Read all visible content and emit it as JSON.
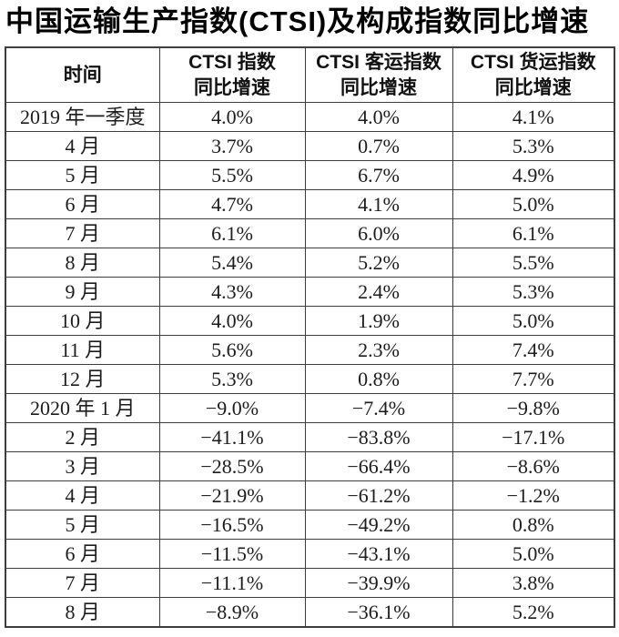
{
  "title": "中国运输生产指数(CTSI)及构成指数同比增速",
  "colors": {
    "background": "#ffffff",
    "text": "#1c1c1c",
    "border": "#3d3d3d"
  },
  "table": {
    "columns": [
      {
        "line1": "时间",
        "line2": ""
      },
      {
        "line1": "CTSI 指数",
        "line2": "同比增速"
      },
      {
        "line1": "CTSI 客运指数",
        "line2": "同比增速"
      },
      {
        "line1": "CTSI 货运指数",
        "line2": "同比增速"
      }
    ],
    "rows": [
      {
        "time": "2019 年一季度",
        "ctsi": "4.0%",
        "passenger": "4.0%",
        "freight": "4.1%"
      },
      {
        "time": "4 月",
        "ctsi": "3.7%",
        "passenger": "0.7%",
        "freight": "5.3%"
      },
      {
        "time": "5 月",
        "ctsi": "5.5%",
        "passenger": "6.7%",
        "freight": "4.9%"
      },
      {
        "time": "6 月",
        "ctsi": "4.7%",
        "passenger": "4.1%",
        "freight": "5.0%"
      },
      {
        "time": "7 月",
        "ctsi": "6.1%",
        "passenger": "6.0%",
        "freight": "6.1%"
      },
      {
        "time": "8 月",
        "ctsi": "5.4%",
        "passenger": "5.2%",
        "freight": "5.5%"
      },
      {
        "time": "9 月",
        "ctsi": "4.3%",
        "passenger": "2.4%",
        "freight": "5.3%"
      },
      {
        "time": "10 月",
        "ctsi": "4.0%",
        "passenger": "1.9%",
        "freight": "5.0%"
      },
      {
        "time": "11 月",
        "ctsi": "5.6%",
        "passenger": "2.3%",
        "freight": "7.4%"
      },
      {
        "time": "12 月",
        "ctsi": "5.3%",
        "passenger": "0.8%",
        "freight": "7.7%"
      },
      {
        "time": "2020 年 1 月",
        "ctsi": "−9.0%",
        "passenger": "−7.4%",
        "freight": "−9.8%"
      },
      {
        "time": "2 月",
        "ctsi": "−41.1%",
        "passenger": "−83.8%",
        "freight": "−17.1%"
      },
      {
        "time": "3 月",
        "ctsi": "−28.5%",
        "passenger": "−66.4%",
        "freight": "−8.6%"
      },
      {
        "time": "4 月",
        "ctsi": "−21.9%",
        "passenger": "−61.2%",
        "freight": "−1.2%"
      },
      {
        "time": "5 月",
        "ctsi": "−16.5%",
        "passenger": "−49.2%",
        "freight": "0.8%"
      },
      {
        "time": "6 月",
        "ctsi": "−11.5%",
        "passenger": "−43.1%",
        "freight": "5.0%"
      },
      {
        "time": "7 月",
        "ctsi": "−11.1%",
        "passenger": "−39.9%",
        "freight": "3.8%"
      },
      {
        "time": "8 月",
        "ctsi": "−8.9%",
        "passenger": "−36.1%",
        "freight": "5.2%"
      }
    ]
  }
}
